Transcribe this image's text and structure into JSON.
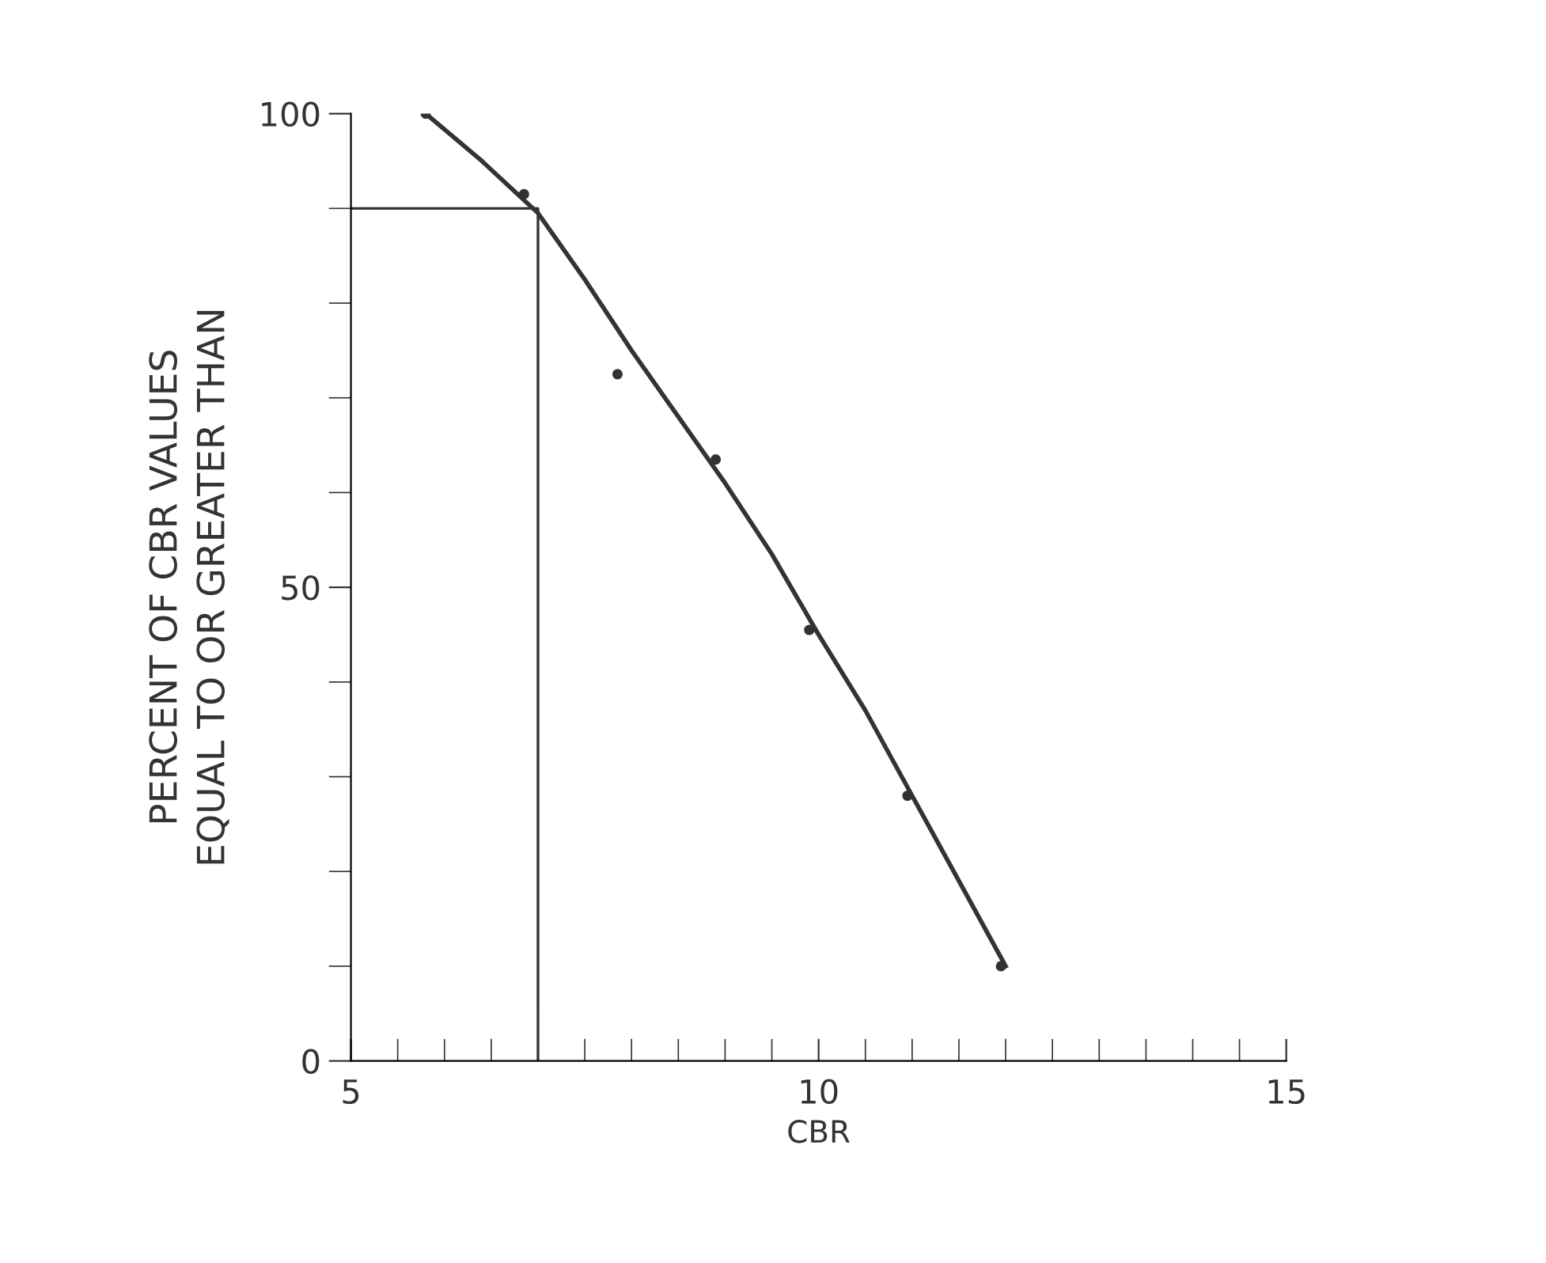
{
  "chart_data": {
    "type": "line",
    "xlabel": "CBR",
    "ylabel": "PERCENT OF CBR VALUES\nEQUAL TO OR GREATER THAN",
    "xlim": [
      5,
      15
    ],
    "ylim": [
      0,
      100
    ],
    "xticks": [
      5,
      {
        "value": 5.5,
        "label": null
      },
      {
        "value": 6,
        "label": null
      },
      {
        "value": 6.5,
        "label": null
      },
      {
        "value": 7,
        "label": null
      },
      {
        "value": 7.5,
        "label": null
      },
      {
        "value": 8,
        "label": null
      },
      {
        "value": 8.5,
        "label": null
      },
      {
        "value": 9,
        "label": null
      },
      {
        "value": 9.5,
        "label": null
      },
      10,
      {
        "value": 10.5,
        "label": null
      },
      {
        "value": 11,
        "label": null
      },
      {
        "value": 11.5,
        "label": null
      },
      {
        "value": 12,
        "label": null
      },
      {
        "value": 12.5,
        "label": null
      },
      {
        "value": 13,
        "label": null
      },
      {
        "value": 13.5,
        "label": null
      },
      {
        "value": 14,
        "label": null
      },
      {
        "value": 14.5,
        "label": null
      },
      15
    ],
    "yticks": [
      0,
      {
        "value": 10,
        "label": null
      },
      {
        "value": 20,
        "label": null
      },
      {
        "value": 30,
        "label": null
      },
      {
        "value": 40,
        "label": null
      },
      50,
      {
        "value": 60,
        "label": null
      },
      {
        "value": 70,
        "label": null
      },
      {
        "value": 80,
        "label": null
      },
      {
        "value": 90,
        "label": null
      },
      100
    ],
    "grid": false,
    "legend": false,
    "series": [
      {
        "type": "scatter",
        "color": "#333333",
        "marker": "circle",
        "x": [
          5.8,
          6.85,
          7.85,
          8.9,
          9.9,
          10.95,
          11.95
        ],
        "values": [
          100,
          91.5,
          72.5,
          63.5,
          45.5,
          28,
          10
        ]
      },
      {
        "color": "#333333",
        "marker": "none",
        "line_style": "solid",
        "x": [
          5.8,
          6.4,
          7,
          7.5,
          8,
          8.5,
          9,
          9.5,
          10,
          10.5,
          11,
          11.5,
          12
        ],
        "values": [
          100,
          95,
          89.5,
          82.5,
          75,
          68,
          61,
          53.5,
          45,
          37,
          28,
          19,
          10
        ]
      },
      {
        "color": "#333333",
        "marker": "none",
        "line_style": "solid",
        "x": [
          5,
          7,
          7
        ],
        "values": [
          90,
          90,
          0
        ]
      }
    ]
  }
}
